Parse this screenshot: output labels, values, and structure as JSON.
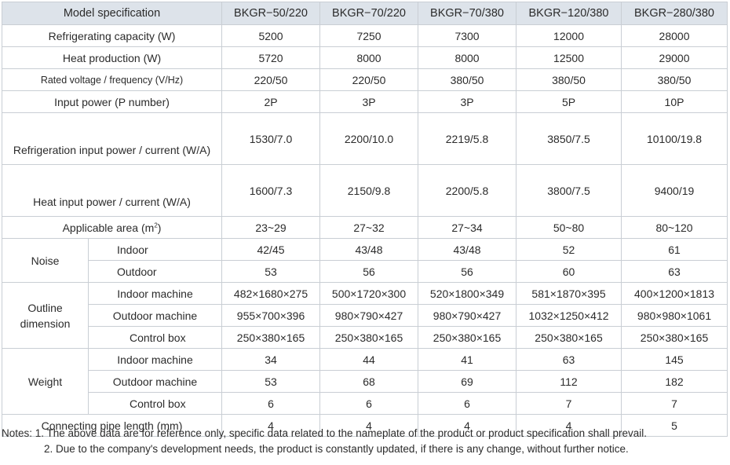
{
  "table": {
    "header": {
      "label": "Model specification",
      "models": [
        "BKGR−50/220",
        "BKGR−70/220",
        "BKGR−70/380",
        "BKGR−120/380",
        "BKGR−280/380"
      ]
    },
    "rows": {
      "refrigerating_capacity": {
        "label": "Refrigerating capacity (W)",
        "values": [
          "5200",
          "7250",
          "7300",
          "12000",
          "28000"
        ]
      },
      "heat_production": {
        "label": "Heat production (W)",
        "values": [
          "5720",
          "8000",
          "8000",
          "12500",
          "29000"
        ]
      },
      "rated_voltage": {
        "label": "Rated voltage / frequency (V/Hz)",
        "values": [
          "220/50",
          "220/50",
          "380/50",
          "380/50",
          "380/50"
        ]
      },
      "input_power": {
        "label": "Input power (P number)",
        "values": [
          "2P",
          "3P",
          "3P",
          "5P",
          "10P"
        ]
      },
      "refrigeration_input": {
        "label": "Refrigeration input power / current (W/A)",
        "values": [
          "1530/7.0",
          "2200/10.0",
          "2219/5.8",
          "3850/7.5",
          "10100/19.8"
        ]
      },
      "heat_input": {
        "label": "Heat input power / current (W/A)",
        "values": [
          "1600/7.3",
          "2150/9.8",
          "2200/5.8",
          "3800/7.5",
          "9400/19"
        ]
      },
      "applicable_area": {
        "label": "Applicable area (m",
        "unit_sup": "2",
        "label_close": ")",
        "values": [
          "23~29",
          "27~32",
          "27~34",
          "50~80",
          "80~120"
        ]
      }
    },
    "noise": {
      "label": "Noise",
      "indoor": {
        "label": "Indoor",
        "values": [
          "42/45",
          "43/48",
          "43/48",
          "52",
          "61"
        ]
      },
      "outdoor": {
        "label": "Outdoor",
        "values": [
          "53",
          "56",
          "56",
          "60",
          "63"
        ]
      }
    },
    "outline": {
      "label_line1": "Outline",
      "label_line2": "dimension",
      "indoor": {
        "label": "Indoor machine",
        "values": [
          "482×1680×275",
          "500×1720×300",
          "520×1800×349",
          "581×1870×395",
          "400×1200×1813"
        ]
      },
      "outdoor": {
        "label": "Outdoor machine",
        "values": [
          "955×700×396",
          "980×790×427",
          "980×790×427",
          "1032×1250×412",
          "980×980×1061"
        ]
      },
      "control": {
        "label": "Control box",
        "values": [
          "250×380×165",
          "250×380×165",
          "250×380×165",
          "250×380×165",
          "250×380×165"
        ]
      }
    },
    "weight": {
      "label": "Weight",
      "indoor": {
        "label": "Indoor machine",
        "values": [
          "34",
          "44",
          "41",
          "63",
          "145"
        ]
      },
      "outdoor": {
        "label": "Outdoor machine",
        "values": [
          "53",
          "68",
          "69",
          "112",
          "182"
        ]
      },
      "control": {
        "label": "Control box",
        "values": [
          "6",
          "6",
          "6",
          "7",
          "7"
        ]
      }
    },
    "pipe": {
      "label": "Connecting pipe length (mm)",
      "values": [
        "4",
        "4",
        "4",
        "4",
        "5"
      ]
    }
  },
  "notes": {
    "line1": "Notes: 1. The above data are for reference only, specific data related to the nameplate of the product or product specification shall prevail.",
    "line2": "2. Due to the company's development needs, the product is constantly updated, if there is any change, without further notice."
  },
  "colors": {
    "header_bg": "#dde3ea",
    "border": "#c9ced4",
    "text": "#2b2b2b"
  }
}
